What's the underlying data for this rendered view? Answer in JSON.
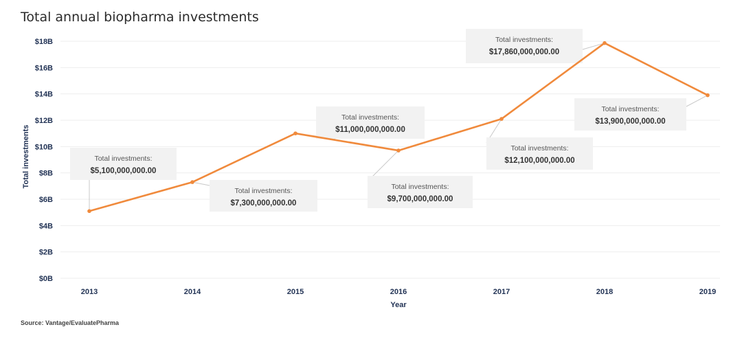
{
  "title": "Total annual biopharma investments",
  "source": "Source: Vantage/EvaluatePharma",
  "colors": {
    "line": "#F08A3C",
    "annotation_bg": "#f2f2f2",
    "tick": "#223355"
  },
  "chart_data": {
    "type": "line",
    "title": "Total annual biopharma investments",
    "xlabel": "Year",
    "ylabel": "Total investments",
    "ylim": [
      0,
      18000000000
    ],
    "yticks": [
      "$0B",
      "$2B",
      "$4B",
      "$6B",
      "$8B",
      "$10B",
      "$12B",
      "$14B",
      "$16B",
      "$18B"
    ],
    "x": [
      "2013",
      "2014",
      "2015",
      "2016",
      "2017",
      "2018",
      "2019"
    ],
    "grid": true,
    "series": [
      {
        "values": [
          5100000000,
          7300000000,
          11000000000,
          9700000000,
          12100000000,
          17860000000,
          13900000000
        ]
      }
    ],
    "annotations": [
      {
        "label": "Total investments:",
        "value": "$5,100,000,000.00"
      },
      {
        "label": "Total investments:",
        "value": "$7,300,000,000.00"
      },
      {
        "label": "Total investments:",
        "value": "$11,000,000,000.00"
      },
      {
        "label": "Total investments:",
        "value": "$9,700,000,000.00"
      },
      {
        "label": "Total investments:",
        "value": "$12,100,000,000.00"
      },
      {
        "label": "Total investments:",
        "value": "$17,860,000,000.00"
      },
      {
        "label": "Total investments:",
        "value": "$13,900,000,000.00"
      }
    ]
  }
}
